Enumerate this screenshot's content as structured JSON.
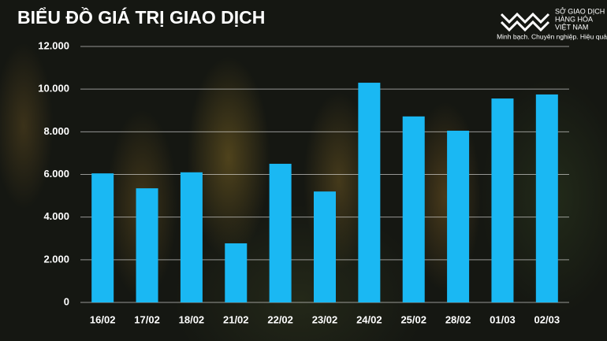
{
  "chart_data": {
    "type": "bar",
    "title": "BIỂU ĐỒ GIÁ TRỊ GIAO DỊCH",
    "categories": [
      "16/02",
      "17/02",
      "18/02",
      "21/02",
      "22/02",
      "23/02",
      "24/02",
      "25/02",
      "28/02",
      "01/03",
      "02/03"
    ],
    "values": [
      6050,
      5350,
      6100,
      2770,
      6500,
      5200,
      10300,
      8720,
      8050,
      9560,
      9750
    ],
    "color": "#1ab8f3",
    "ylim": [
      0,
      12000
    ],
    "yticks": [
      0,
      {
        "value": 2000,
        "label": "2.000"
      },
      {
        "value": 4000,
        "label": "4.000"
      },
      {
        "value": 6000,
        "label": "6.000"
      },
      {
        "value": 8000,
        "label": "8.000"
      },
      {
        "value": 10000,
        "label": "10.000"
      },
      {
        "value": 12000,
        "label": "12.000"
      }
    ],
    "grid": true
  },
  "logo": {
    "lines": [
      "SỞ GIAO DỊCH",
      "HÀNG HÓA",
      "VIỆT NAM"
    ],
    "tagline": "Minh bạch. Chuyên nghiệp. Hiệu quả"
  }
}
